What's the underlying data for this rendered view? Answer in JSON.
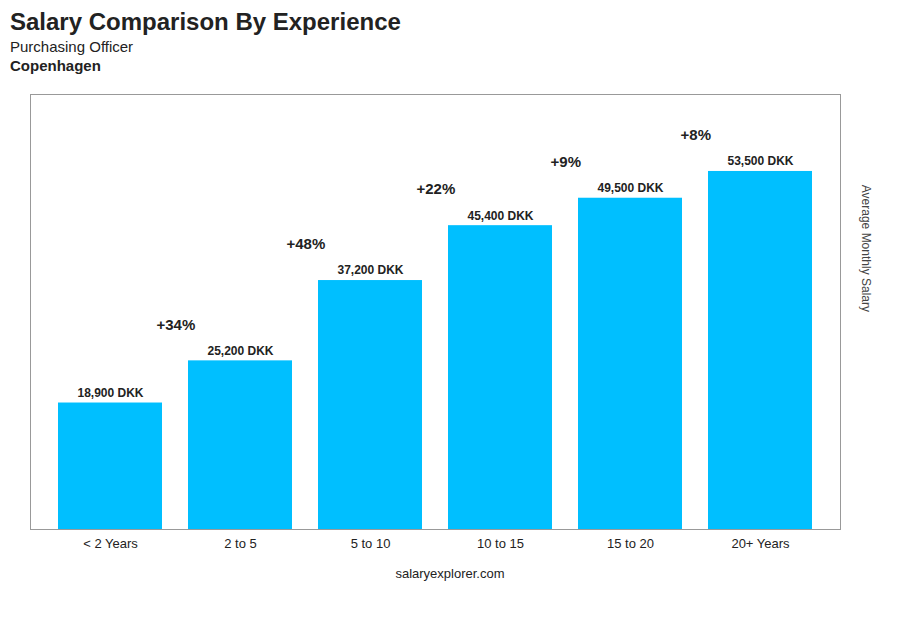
{
  "chart_data": {
    "type": "bar",
    "title": "Salary Comparison By Experience",
    "subtitle": [
      "Purchasing Officer",
      "Copenhagen"
    ],
    "categories": [
      "< 2 Years",
      "2 to 5",
      "5 to 10",
      "10 to 15",
      "15 to 20",
      "20+ Years"
    ],
    "values": [
      18900,
      25200,
      37200,
      45400,
      49500,
      53500
    ],
    "value_labels": [
      "18,900 DKK",
      "25,200 DKK",
      "37,200 DKK",
      "45,400 DKK",
      "49,500 DKK",
      "53,500 DKK"
    ],
    "data_labels": true,
    "color": "#00BFFF",
    "ylabel": "Average Monthly Salary",
    "ylim": [
      0,
      65000
    ],
    "tick_labels": "x",
    "annotations": [
      "+34%",
      "+48%",
      "+22%",
      "+9%",
      "+8%"
    ],
    "caption": "salaryexplorer.com"
  }
}
